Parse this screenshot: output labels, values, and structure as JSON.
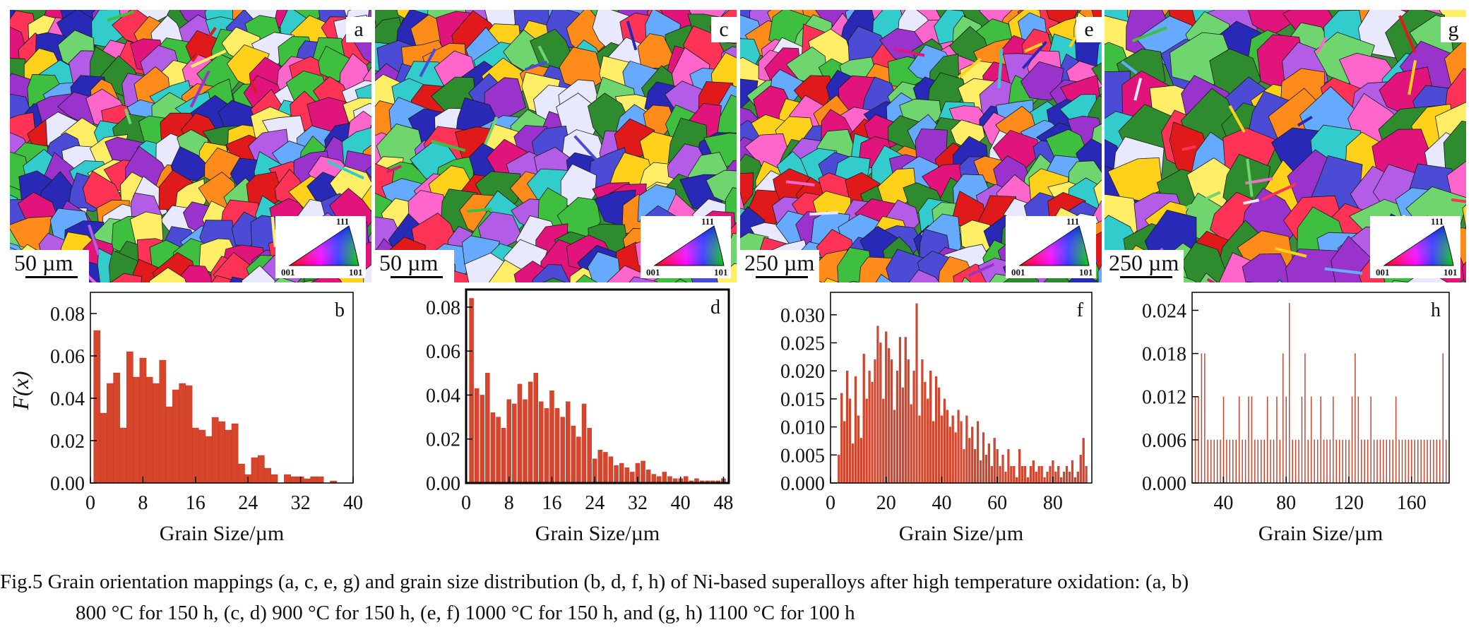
{
  "maps": [
    {
      "letter": "a",
      "scalebar": "50 µm",
      "seed": 11,
      "size": 36,
      "ipf": {
        "top": "111",
        "left": "001",
        "right": "101"
      }
    },
    {
      "letter": "c",
      "scalebar": "50 µm",
      "seed": 23,
      "size": 40,
      "ipf": {
        "top": "111",
        "left": "001",
        "right": "101"
      }
    },
    {
      "letter": "e",
      "scalebar": "250 µm",
      "seed": 37,
      "size": 36,
      "ipf": {
        "top": "111",
        "left": "001",
        "right": "101"
      }
    },
    {
      "letter": "g",
      "scalebar": "250 µm",
      "seed": 53,
      "size": 52,
      "ipf": {
        "top": "111",
        "left": "001",
        "right": "101"
      }
    }
  ],
  "map_palette": [
    "#2e8b2e",
    "#3fbf3f",
    "#6fd66f",
    "#2929b8",
    "#4b4bd6",
    "#e01a1a",
    "#ff3355",
    "#e0147a",
    "#ff66cc",
    "#9933cc",
    "#b35ce6",
    "#ffd11a",
    "#ffee66",
    "#ff8c1a",
    "#33cccc",
    "#66aaff",
    "#e8e8ff"
  ],
  "chart_data": [
    {
      "type": "bar",
      "panel": "b",
      "xlabel": "Grain Size/µm",
      "ylabel": "F(x)",
      "xlim": [
        0,
        40
      ],
      "ylim": [
        0,
        0.09
      ],
      "xticks": [
        0,
        8,
        16,
        24,
        32,
        40
      ],
      "yticks": [
        0,
        0.02,
        0.04,
        0.06,
        0.08
      ],
      "ytick_labels": [
        "0.00",
        "0.02",
        "0.04",
        "0.06",
        "0.08"
      ],
      "bar_width": 1,
      "x": [
        1,
        2,
        3,
        4,
        5,
        6,
        7,
        8,
        9,
        10,
        11,
        12,
        13,
        14,
        15,
        16,
        17,
        18,
        19,
        20,
        21,
        22,
        23,
        24,
        25,
        26,
        27,
        28,
        29,
        30,
        31,
        32,
        33,
        34,
        35,
        36,
        37
      ],
      "values": [
        0.072,
        0.033,
        0.047,
        0.052,
        0.026,
        0.062,
        0.05,
        0.059,
        0.05,
        0.047,
        0.058,
        0.036,
        0.044,
        0.047,
        0.046,
        0.026,
        0.025,
        0.022,
        0.031,
        0.029,
        0.025,
        0.028,
        0.009,
        0.004,
        0.012,
        0.013,
        0.007,
        0.004,
        0,
        0.004,
        0.003,
        0.003,
        0.002,
        0.003,
        0.003,
        0,
        0.001
      ]
    },
    {
      "type": "bar",
      "panel": "d",
      "xlabel": "Grain Size/µm",
      "ylabel": "",
      "xlim": [
        0,
        49
      ],
      "ylim": [
        0,
        0.088
      ],
      "xticks": [
        0,
        8,
        16,
        24,
        32,
        40,
        48
      ],
      "yticks": [
        0,
        0.02,
        0.04,
        0.06,
        0.08
      ],
      "ytick_labels": [
        "0.00",
        "0.02",
        "0.04",
        "0.06",
        "0.08"
      ],
      "bar_width": 0.8,
      "x": [
        1,
        2,
        3,
        4,
        5,
        6,
        7,
        8,
        9,
        10,
        11,
        12,
        13,
        14,
        15,
        16,
        17,
        18,
        19,
        20,
        21,
        22,
        23,
        24,
        25,
        26,
        27,
        28,
        29,
        30,
        31,
        32,
        33,
        34,
        35,
        36,
        37,
        38,
        39,
        40,
        41,
        42,
        43,
        44,
        45,
        46,
        47,
        48
      ],
      "values": [
        0.084,
        0.043,
        0.04,
        0.05,
        0.032,
        0.03,
        0.025,
        0.038,
        0.036,
        0.045,
        0.038,
        0.046,
        0.05,
        0.037,
        0.034,
        0.042,
        0.034,
        0.03,
        0.037,
        0.026,
        0.021,
        0.036,
        0.025,
        0.011,
        0.015,
        0.014,
        0.012,
        0.008,
        0.009,
        0.007,
        0.005,
        0.009,
        0.01,
        0.006,
        0.004,
        0.003,
        0.005,
        0.003,
        0.002,
        0.002,
        0.003,
        0.001,
        0.002,
        0.001,
        0.001,
        0.001,
        0.001,
        0.002
      ]
    },
    {
      "type": "bar",
      "panel": "f",
      "xlabel": "Grain Size/µm",
      "ylabel": "",
      "xlim": [
        0,
        94
      ],
      "ylim": [
        0,
        0.034
      ],
      "xticks": [
        0,
        20,
        40,
        60,
        80
      ],
      "yticks": [
        0,
        0.005,
        0.01,
        0.015,
        0.02,
        0.025,
        0.03
      ],
      "ytick_labels": [
        "0.000",
        "0.005",
        "0.010",
        "0.015",
        "0.020",
        "0.025",
        "0.030"
      ],
      "bar_width": 0.7,
      "x": [
        3,
        4,
        5,
        6,
        7,
        8,
        9,
        10,
        11,
        12,
        13,
        14,
        15,
        16,
        17,
        18,
        19,
        20,
        21,
        22,
        23,
        24,
        25,
        26,
        27,
        28,
        29,
        30,
        31,
        32,
        33,
        34,
        35,
        36,
        37,
        38,
        39,
        40,
        41,
        42,
        43,
        44,
        45,
        46,
        47,
        48,
        49,
        50,
        51,
        52,
        53,
        54,
        55,
        56,
        57,
        58,
        59,
        60,
        61,
        62,
        63,
        64,
        65,
        66,
        67,
        68,
        69,
        70,
        71,
        72,
        73,
        74,
        75,
        76,
        77,
        78,
        79,
        80,
        81,
        82,
        83,
        84,
        85,
        86,
        87,
        88,
        89,
        90,
        91,
        92
      ],
      "values": [
        0.005,
        0.016,
        0.011,
        0.02,
        0.015,
        0.007,
        0.019,
        0.012,
        0.008,
        0.023,
        0.015,
        0.02,
        0.018,
        0.022,
        0.028,
        0.025,
        0.015,
        0.027,
        0.024,
        0.022,
        0.013,
        0.02,
        0.026,
        0.017,
        0.026,
        0.022,
        0.014,
        0.02,
        0.032,
        0.012,
        0.022,
        0.018,
        0.015,
        0.02,
        0.011,
        0.019,
        0.017,
        0.012,
        0.015,
        0.013,
        0.01,
        0.012,
        0.009,
        0.013,
        0.011,
        0.006,
        0.012,
        0.008,
        0.01,
        0.006,
        0.011,
        0.004,
        0.009,
        0.005,
        0.007,
        0.003,
        0.008,
        0.006,
        0.003,
        0.005,
        0.002,
        0.006,
        0.003,
        0.003,
        0.001,
        0.006,
        0.003,
        0.003,
        0.001,
        0.003,
        0.004,
        0.002,
        0.003,
        0.003,
        0.001,
        0.002,
        0.003,
        0.004,
        0.002,
        0.003,
        0.001,
        0.002,
        0.003,
        0.002,
        0.004,
        0.001,
        0.002,
        0.005,
        0.008,
        0.003
      ]
    },
    {
      "type": "bar",
      "panel": "h",
      "xlabel": "Grain Size/µm",
      "ylabel": "",
      "xlim": [
        20,
        184
      ],
      "ylim": [
        0,
        0.0265
      ],
      "xticks": [
        40,
        80,
        120,
        160
      ],
      "yticks": [
        0,
        0.006,
        0.012,
        0.018,
        0.024
      ],
      "ytick_labels": [
        "0.000",
        "0.006",
        "0.012",
        "0.018",
        "0.024"
      ],
      "bar_width": 0.35,
      "x": [
        22,
        24,
        26,
        28,
        30,
        32,
        34,
        36,
        38,
        40,
        42,
        44,
        46,
        48,
        50,
        52,
        54,
        56,
        58,
        60,
        62,
        64,
        66,
        68,
        70,
        72,
        74,
        76,
        78,
        80,
        82,
        84,
        86,
        88,
        90,
        92,
        94,
        96,
        98,
        100,
        102,
        104,
        106,
        108,
        110,
        112,
        114,
        116,
        118,
        120,
        122,
        124,
        126,
        128,
        130,
        132,
        134,
        136,
        138,
        140,
        142,
        144,
        146,
        148,
        150,
        152,
        154,
        156,
        158,
        160,
        162,
        164,
        166,
        168,
        170,
        172,
        174,
        176,
        178,
        180,
        182
      ],
      "values": [
        0.012,
        0.012,
        0.018,
        0.018,
        0.006,
        0.006,
        0.006,
        0.006,
        0.006,
        0.012,
        0.006,
        0.006,
        0.006,
        0.006,
        0.012,
        0.006,
        0.006,
        0.012,
        0.012,
        0.006,
        0.006,
        0.006,
        0.006,
        0.012,
        0.006,
        0.006,
        0.012,
        0.006,
        0.018,
        0.012,
        0.025,
        0.006,
        0.006,
        0.006,
        0.012,
        0.018,
        0.006,
        0.012,
        0.006,
        0.006,
        0.012,
        0.006,
        0.006,
        0.006,
        0.012,
        0.006,
        0.006,
        0.006,
        0.006,
        0.006,
        0.012,
        0.018,
        0.012,
        0.006,
        0.006,
        0.006,
        0.012,
        0.006,
        0.006,
        0.006,
        0.006,
        0.006,
        0.006,
        0.006,
        0.012,
        0.006,
        0.006,
        0.006,
        0.006,
        0.006,
        0.006,
        0.006,
        0.006,
        0.006,
        0.006,
        0.006,
        0.006,
        0.006,
        0.006,
        0.018,
        0.006
      ]
    }
  ],
  "caption": {
    "line1": "Fig.5    Grain orientation mappings (a, c, e, g) and grain size distribution (b, d, f, h) of Ni-based superalloys after high temperature oxidation: (a, b)",
    "line2": "800 °C for 150 h, (c, d) 900 °C for 150 h, (e, f) 1000 °C for 150 h, and (g, h) 1100 °C for 100 h"
  },
  "colors": {
    "bar": "#d7452c",
    "bar_edge": "#b8321c"
  }
}
